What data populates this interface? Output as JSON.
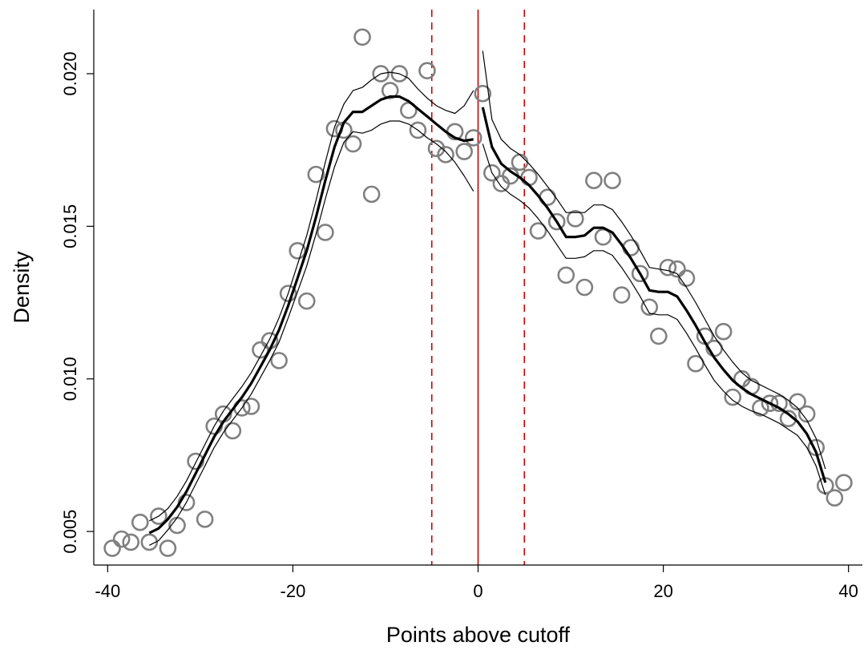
{
  "chart_data": {
    "type": "scatter",
    "title": "",
    "xlabel": "Points above cutoff",
    "ylabel": "Density",
    "xlim": [
      -41.5,
      41.5
    ],
    "ylim": [
      0.0039,
      0.0221
    ],
    "xticks": [
      -40,
      -20,
      0,
      20,
      40
    ],
    "xtick_labels": [
      "-40",
      "-20",
      "0",
      "20",
      "40"
    ],
    "yticks": [
      0.005,
      0.01,
      0.015,
      0.02
    ],
    "ytick_labels": [
      "0.005",
      "0.010",
      "0.015",
      "0.020"
    ],
    "grid": false,
    "legend": "none",
    "reference_lines": [
      {
        "x": 0,
        "style": "solid",
        "color": "#cc0000"
      },
      {
        "x": -5,
        "style": "dashed",
        "color": "#cc0000"
      },
      {
        "x": 5,
        "style": "dashed",
        "color": "#cc0000"
      }
    ],
    "scatter_points": [
      [
        -39.5,
        0.00445
      ],
      [
        -38.5,
        0.00475
      ],
      [
        -37.5,
        0.00465
      ],
      [
        -36.5,
        0.0053
      ],
      [
        -35.5,
        0.00465
      ],
      [
        -34.5,
        0.0055
      ],
      [
        -33.5,
        0.00445
      ],
      [
        -32.5,
        0.0052
      ],
      [
        -31.5,
        0.00595
      ],
      [
        -30.5,
        0.0073
      ],
      [
        -29.5,
        0.0054
      ],
      [
        -28.5,
        0.00845
      ],
      [
        -27.5,
        0.00885
      ],
      [
        -26.5,
        0.0083
      ],
      [
        -25.5,
        0.00905
      ],
      [
        -24.5,
        0.0091
      ],
      [
        -23.5,
        0.01095
      ],
      [
        -22.5,
        0.01125
      ],
      [
        -21.5,
        0.0106
      ],
      [
        -20.5,
        0.0128
      ],
      [
        -19.5,
        0.0142
      ],
      [
        -18.5,
        0.01255
      ],
      [
        -17.5,
        0.0167
      ],
      [
        -16.5,
        0.0148
      ],
      [
        -15.5,
        0.0182
      ],
      [
        -14.5,
        0.01815
      ],
      [
        -13.5,
        0.0177
      ],
      [
        -12.5,
        0.0212
      ],
      [
        -11.5,
        0.01605
      ],
      [
        -10.5,
        0.02
      ],
      [
        -9.5,
        0.01945
      ],
      [
        -8.5,
        0.02
      ],
      [
        -7.5,
        0.0188
      ],
      [
        -6.5,
        0.01815
      ],
      [
        -5.5,
        0.0201
      ],
      [
        -4.5,
        0.01755
      ],
      [
        -3.5,
        0.01735
      ],
      [
        -2.5,
        0.0181
      ],
      [
        -1.5,
        0.01745
      ],
      [
        -0.5,
        0.0179
      ],
      [
        0.5,
        0.01935
      ],
      [
        1.5,
        0.01675
      ],
      [
        2.5,
        0.0164
      ],
      [
        3.5,
        0.01665
      ],
      [
        4.5,
        0.0171
      ],
      [
        5.5,
        0.0166
      ],
      [
        6.5,
        0.01485
      ],
      [
        7.5,
        0.01595
      ],
      [
        8.5,
        0.01515
      ],
      [
        9.5,
        0.0134
      ],
      [
        10.5,
        0.01525
      ],
      [
        11.5,
        0.013
      ],
      [
        12.5,
        0.0165
      ],
      [
        13.5,
        0.01465
      ],
      [
        14.5,
        0.0165
      ],
      [
        15.5,
        0.01275
      ],
      [
        16.5,
        0.0143
      ],
      [
        17.5,
        0.01345
      ],
      [
        18.5,
        0.01235
      ],
      [
        19.5,
        0.0114
      ],
      [
        20.5,
        0.01365
      ],
      [
        21.5,
        0.0136
      ],
      [
        22.5,
        0.0133
      ],
      [
        23.5,
        0.0105
      ],
      [
        24.5,
        0.0114
      ],
      [
        25.5,
        0.011
      ],
      [
        26.5,
        0.01155
      ],
      [
        27.5,
        0.0094
      ],
      [
        28.5,
        0.01
      ],
      [
        29.5,
        0.00975
      ],
      [
        30.5,
        0.00905
      ],
      [
        31.5,
        0.0092
      ],
      [
        32.5,
        0.0092
      ],
      [
        33.5,
        0.0087
      ],
      [
        34.5,
        0.00925
      ],
      [
        35.5,
        0.00885
      ],
      [
        36.5,
        0.00775
      ],
      [
        37.5,
        0.0065
      ],
      [
        38.5,
        0.0061
      ],
      [
        39.5,
        0.0066
      ]
    ],
    "fits": [
      {
        "segment": "left",
        "estimate": [
          [
            -35.5,
            0.00495
          ],
          [
            -34.5,
            0.0051
          ],
          [
            -33.5,
            0.0054
          ],
          [
            -32.5,
            0.0058
          ],
          [
            -31.5,
            0.0063
          ],
          [
            -30.5,
            0.0069
          ],
          [
            -29.5,
            0.0075
          ],
          [
            -28.5,
            0.0081
          ],
          [
            -27.5,
            0.0086
          ],
          [
            -26.5,
            0.009
          ],
          [
            -25.5,
            0.0094
          ],
          [
            -24.5,
            0.00985
          ],
          [
            -23.5,
            0.0104
          ],
          [
            -22.5,
            0.01095
          ],
          [
            -21.5,
            0.0116
          ],
          [
            -20.5,
            0.0124
          ],
          [
            -19.5,
            0.0133
          ],
          [
            -18.5,
            0.0142
          ],
          [
            -17.5,
            0.0153
          ],
          [
            -16.5,
            0.0165
          ],
          [
            -15.5,
            0.0176
          ],
          [
            -14.5,
            0.0184
          ],
          [
            -13.5,
            0.01875
          ],
          [
            -12.5,
            0.01875
          ],
          [
            -11.5,
            0.01895
          ],
          [
            -10.5,
            0.01915
          ],
          [
            -9.5,
            0.01925
          ],
          [
            -8.5,
            0.01925
          ],
          [
            -7.5,
            0.0191
          ],
          [
            -6.5,
            0.01885
          ],
          [
            -5.5,
            0.0186
          ],
          [
            -4.5,
            0.01835
          ],
          [
            -3.5,
            0.0181
          ],
          [
            -2.5,
            0.0179
          ],
          [
            -1.5,
            0.0178
          ],
          [
            -0.5,
            0.01785
          ]
        ],
        "upper": [
          [
            -35.5,
            0.00535
          ],
          [
            -34.5,
            0.0055
          ],
          [
            -33.5,
            0.00575
          ],
          [
            -32.5,
            0.00615
          ],
          [
            -31.5,
            0.00665
          ],
          [
            -30.5,
            0.00725
          ],
          [
            -29.5,
            0.00785
          ],
          [
            -28.5,
            0.00845
          ],
          [
            -27.5,
            0.00895
          ],
          [
            -26.5,
            0.00935
          ],
          [
            -25.5,
            0.00975
          ],
          [
            -24.5,
            0.0102
          ],
          [
            -23.5,
            0.01075
          ],
          [
            -22.5,
            0.0113
          ],
          [
            -21.5,
            0.012
          ],
          [
            -20.5,
            0.0128
          ],
          [
            -19.5,
            0.01375
          ],
          [
            -18.5,
            0.0147
          ],
          [
            -17.5,
            0.01585
          ],
          [
            -16.5,
            0.0171
          ],
          [
            -15.5,
            0.01825
          ],
          [
            -14.5,
            0.019
          ],
          [
            -13.5,
            0.01945
          ],
          [
            -12.5,
            0.01955
          ],
          [
            -11.5,
            0.0198
          ],
          [
            -10.5,
            0.02
          ],
          [
            -9.5,
            0.02005
          ],
          [
            -8.5,
            0.02
          ],
          [
            -7.5,
            0.01985
          ],
          [
            -6.5,
            0.0195
          ],
          [
            -5.5,
            0.0192
          ],
          [
            -4.5,
            0.01895
          ],
          [
            -3.5,
            0.0188
          ],
          [
            -2.5,
            0.0187
          ],
          [
            -1.5,
            0.01895
          ],
          [
            -0.5,
            0.01945
          ]
        ],
        "lower": [
          [
            -35.5,
            0.00455
          ],
          [
            -34.5,
            0.0047
          ],
          [
            -33.5,
            0.00505
          ],
          [
            -32.5,
            0.00545
          ],
          [
            -31.5,
            0.00595
          ],
          [
            -30.5,
            0.00655
          ],
          [
            -29.5,
            0.00715
          ],
          [
            -28.5,
            0.00775
          ],
          [
            -27.5,
            0.00825
          ],
          [
            -26.5,
            0.00865
          ],
          [
            -25.5,
            0.00905
          ],
          [
            -24.5,
            0.0095
          ],
          [
            -23.5,
            0.01005
          ],
          [
            -22.5,
            0.0106
          ],
          [
            -21.5,
            0.0112
          ],
          [
            -20.5,
            0.012
          ],
          [
            -19.5,
            0.01285
          ],
          [
            -18.5,
            0.0137
          ],
          [
            -17.5,
            0.01475
          ],
          [
            -16.5,
            0.0159
          ],
          [
            -15.5,
            0.01695
          ],
          [
            -14.5,
            0.01775
          ],
          [
            -13.5,
            0.0181
          ],
          [
            -12.5,
            0.01805
          ],
          [
            -11.5,
            0.01815
          ],
          [
            -10.5,
            0.01835
          ],
          [
            -9.5,
            0.01845
          ],
          [
            -8.5,
            0.01845
          ],
          [
            -7.5,
            0.01835
          ],
          [
            -6.5,
            0.01815
          ],
          [
            -5.5,
            0.0179
          ],
          [
            -4.5,
            0.0177
          ],
          [
            -3.5,
            0.01745
          ],
          [
            -2.5,
            0.0171
          ],
          [
            -1.5,
            0.01665
          ],
          [
            -0.5,
            0.01615
          ]
        ]
      },
      {
        "segment": "right",
        "estimate": [
          [
            0.5,
            0.0189
          ],
          [
            1.5,
            0.0176
          ],
          [
            2.5,
            0.01705
          ],
          [
            3.5,
            0.0168
          ],
          [
            4.5,
            0.0166
          ],
          [
            5.5,
            0.01635
          ],
          [
            6.5,
            0.016
          ],
          [
            7.5,
            0.0156
          ],
          [
            8.5,
            0.01515
          ],
          [
            9.5,
            0.01465
          ],
          [
            10.5,
            0.01465
          ],
          [
            11.5,
            0.0147
          ],
          [
            12.5,
            0.01495
          ],
          [
            13.5,
            0.01495
          ],
          [
            14.5,
            0.0148
          ],
          [
            15.5,
            0.0144
          ],
          [
            16.5,
            0.01395
          ],
          [
            17.5,
            0.01345
          ],
          [
            18.5,
            0.0129
          ],
          [
            19.5,
            0.01285
          ],
          [
            20.5,
            0.01285
          ],
          [
            21.5,
            0.0127
          ],
          [
            22.5,
            0.01225
          ],
          [
            23.5,
            0.01175
          ],
          [
            24.5,
            0.0112
          ],
          [
            25.5,
            0.0107
          ],
          [
            26.5,
            0.0103
          ],
          [
            27.5,
            0.00995
          ],
          [
            28.5,
            0.0097
          ],
          [
            29.5,
            0.0095
          ],
          [
            30.5,
            0.00935
          ],
          [
            31.5,
            0.0092
          ],
          [
            32.5,
            0.00905
          ],
          [
            33.5,
            0.00885
          ],
          [
            34.5,
            0.0086
          ],
          [
            35.5,
            0.0082
          ],
          [
            36.5,
            0.0076
          ],
          [
            37.5,
            0.0066
          ]
        ],
        "upper": [
          [
            0.5,
            0.02075
          ],
          [
            1.5,
            0.0185
          ],
          [
            2.5,
            0.01785
          ],
          [
            3.5,
            0.01755
          ],
          [
            4.5,
            0.01735
          ],
          [
            5.5,
            0.01705
          ],
          [
            6.5,
            0.0167
          ],
          [
            7.5,
            0.0163
          ],
          [
            8.5,
            0.0159
          ],
          [
            9.5,
            0.01545
          ],
          [
            10.5,
            0.01545
          ],
          [
            11.5,
            0.01545
          ],
          [
            12.5,
            0.0157
          ],
          [
            13.5,
            0.0157
          ],
          [
            14.5,
            0.01555
          ],
          [
            15.5,
            0.01515
          ],
          [
            16.5,
            0.0147
          ],
          [
            17.5,
            0.0142
          ],
          [
            18.5,
            0.01365
          ],
          [
            19.5,
            0.0136
          ],
          [
            20.5,
            0.01355
          ],
          [
            21.5,
            0.01345
          ],
          [
            22.5,
            0.013
          ],
          [
            23.5,
            0.0125
          ],
          [
            24.5,
            0.01195
          ],
          [
            25.5,
            0.0114
          ],
          [
            26.5,
            0.01095
          ],
          [
            27.5,
            0.01055
          ],
          [
            28.5,
            0.0102
          ],
          [
            29.5,
            0.00995
          ],
          [
            30.5,
            0.0098
          ],
          [
            31.5,
            0.00965
          ],
          [
            32.5,
            0.0095
          ],
          [
            33.5,
            0.0093
          ],
          [
            34.5,
            0.00905
          ],
          [
            35.5,
            0.00865
          ],
          [
            36.5,
            0.00805
          ],
          [
            37.5,
            0.00705
          ]
        ],
        "lower": [
          [
            0.5,
            0.0177
          ],
          [
            1.5,
            0.01675
          ],
          [
            2.5,
            0.0163
          ],
          [
            3.5,
            0.01605
          ],
          [
            4.5,
            0.01585
          ],
          [
            5.5,
            0.0156
          ],
          [
            6.5,
            0.01525
          ],
          [
            7.5,
            0.01485
          ],
          [
            8.5,
            0.0144
          ],
          [
            9.5,
            0.01395
          ],
          [
            10.5,
            0.01395
          ],
          [
            11.5,
            0.014
          ],
          [
            12.5,
            0.0142
          ],
          [
            13.5,
            0.0142
          ],
          [
            14.5,
            0.01405
          ],
          [
            15.5,
            0.01365
          ],
          [
            16.5,
            0.0132
          ],
          [
            17.5,
            0.0127
          ],
          [
            18.5,
            0.01215
          ],
          [
            19.5,
            0.0121
          ],
          [
            20.5,
            0.0121
          ],
          [
            21.5,
            0.01195
          ],
          [
            22.5,
            0.0115
          ],
          [
            23.5,
            0.011
          ],
          [
            24.5,
            0.01045
          ],
          [
            25.5,
            0.00995
          ],
          [
            26.5,
            0.0096
          ],
          [
            27.5,
            0.0093
          ],
          [
            28.5,
            0.0091
          ],
          [
            29.5,
            0.00895
          ],
          [
            30.5,
            0.00885
          ],
          [
            31.5,
            0.0087
          ],
          [
            32.5,
            0.00855
          ],
          [
            33.5,
            0.00835
          ],
          [
            34.5,
            0.00815
          ],
          [
            35.5,
            0.00775
          ],
          [
            36.5,
            0.00715
          ],
          [
            37.5,
            0.0062
          ]
        ]
      }
    ],
    "colors": {
      "markers": "#808080",
      "fit": "#000000",
      "reference": "#cc0000"
    }
  }
}
